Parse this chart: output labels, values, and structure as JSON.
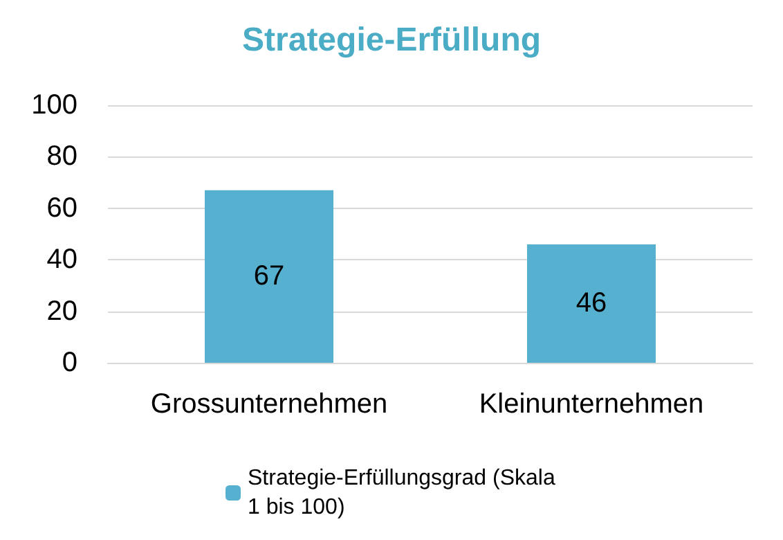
{
  "chart_data": {
    "type": "bar",
    "title": "Strategie-Erfüllung",
    "categories": [
      "Grossunternehmen",
      "Kleinunternehmen"
    ],
    "series": [
      {
        "name": "Strategie-Erfüllungsgrad (Skala 1 bis 100)",
        "color": "#56b0cf",
        "values": [
          67,
          46
        ]
      }
    ],
    "ylim": [
      0,
      100
    ],
    "yticks": [
      0,
      20,
      40,
      60,
      80,
      100
    ],
    "grid": "y",
    "legend": "bottom",
    "data_labels": true
  }
}
